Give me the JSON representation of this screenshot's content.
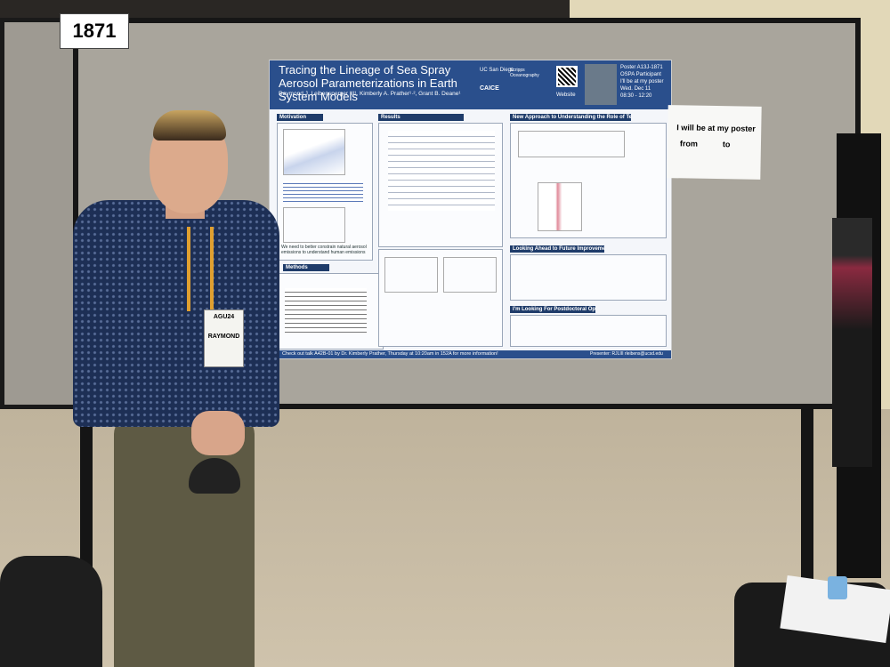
{
  "booth": {
    "number": "1871"
  },
  "poster": {
    "title": "Tracing the Lineage of Sea Spray Aerosol Parameterizations in Earth System Models",
    "authors": "Raymond J. Leibensperger III¹, Kimberly A. Prather¹·², Grant B. Deane¹",
    "logos": [
      "UC San Diego",
      "Scripps Oceanography",
      "CAICE"
    ],
    "website_label": "Website",
    "schedule": [
      "Poster A13J-1871",
      "OSPA Participant",
      "I'll be at my poster",
      "Wed. Dec 11",
      "08:30 - 12:20"
    ],
    "sections": [
      "Motivation",
      "Results",
      "New Approach to Understanding the Role of Temperature",
      "Methods",
      "Looking Ahead to Future Improvements",
      "I'm Looking For Postdoctoral Opportunities"
    ],
    "motivation_note": "We need to better constrain natural aerosol emissions to understand human emissions",
    "footer": "Check out talk A42B-01 by Dr. Kimberly Prather, Thursday at 10:20am in 152A for more information!",
    "presenter": "Presenter: RJLIII rleibens@ucsd.edu"
  },
  "sign": {
    "line1": "I will be at my poster",
    "from": "from",
    "to": "to"
  },
  "badge": {
    "event": "AGU24",
    "name": "RAYMOND"
  }
}
